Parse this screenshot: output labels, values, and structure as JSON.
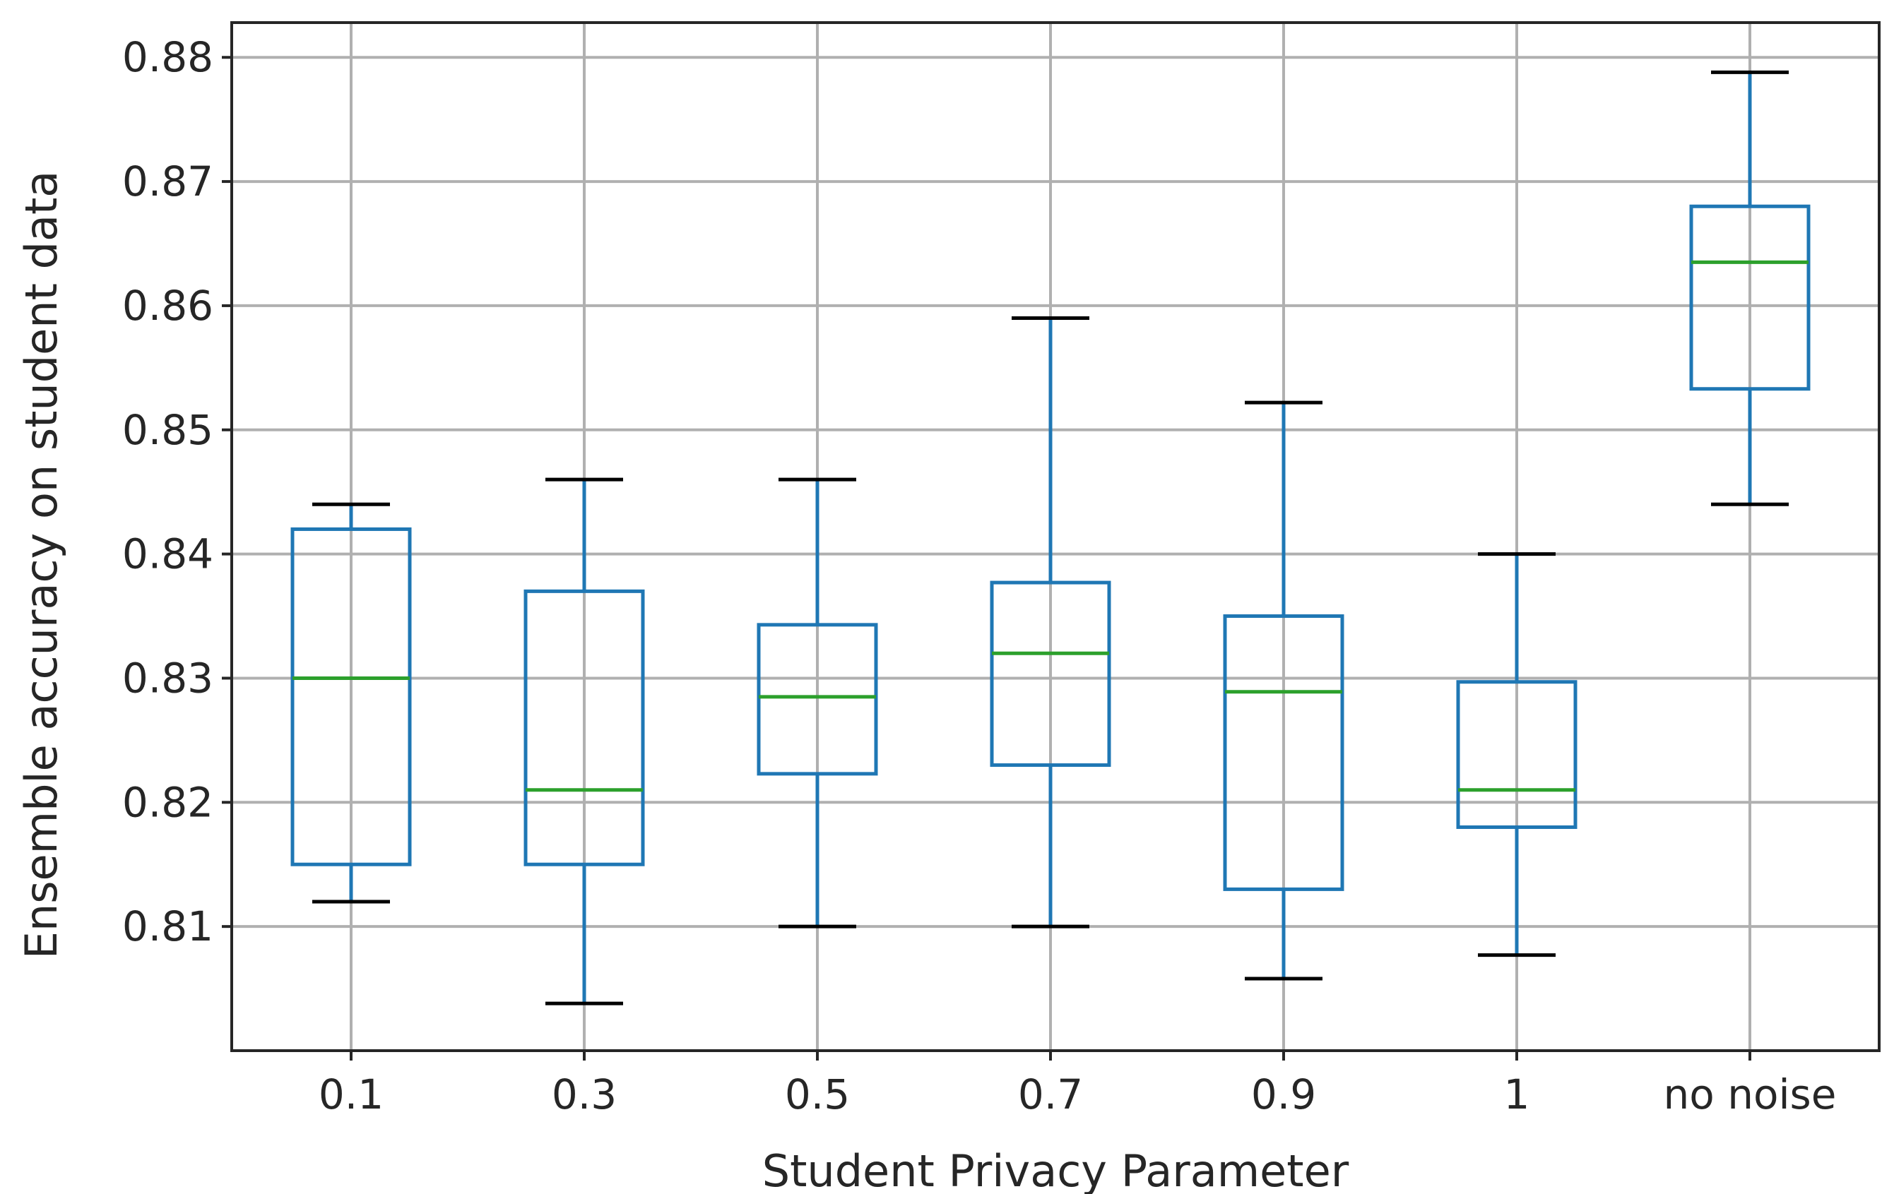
{
  "chart_data": {
    "type": "boxplot",
    "title": "",
    "xlabel": "Student Privacy Parameter",
    "ylabel": "Ensemble accuracy on student data",
    "categories": [
      "0.1",
      "0.3",
      "0.5",
      "0.7",
      "0.9",
      "1",
      "no noise"
    ],
    "ylim": [
      0.8,
      0.8828
    ],
    "yticks": [
      0.81,
      0.82,
      0.83,
      0.84,
      0.85,
      0.86,
      0.87,
      0.88
    ],
    "ytick_labels": [
      "0.81",
      "0.82",
      "0.83",
      "0.84",
      "0.85",
      "0.86",
      "0.87",
      "0.88"
    ],
    "grid": true,
    "boxes": [
      {
        "category": "0.1",
        "whisker_low": 0.812,
        "q1": 0.815,
        "median": 0.83,
        "q3": 0.842,
        "whisker_high": 0.844
      },
      {
        "category": "0.3",
        "whisker_low": 0.8038,
        "q1": 0.815,
        "median": 0.821,
        "q3": 0.837,
        "whisker_high": 0.846
      },
      {
        "category": "0.5",
        "whisker_low": 0.81,
        "q1": 0.8223,
        "median": 0.8285,
        "q3": 0.8343,
        "whisker_high": 0.846
      },
      {
        "category": "0.7",
        "whisker_low": 0.81,
        "q1": 0.823,
        "median": 0.832,
        "q3": 0.8377,
        "whisker_high": 0.859
      },
      {
        "category": "0.9",
        "whisker_low": 0.8058,
        "q1": 0.813,
        "median": 0.8289,
        "q3": 0.835,
        "whisker_high": 0.8522
      },
      {
        "category": "1",
        "whisker_low": 0.8077,
        "q1": 0.818,
        "median": 0.821,
        "q3": 0.8297,
        "whisker_high": 0.84
      },
      {
        "category": "no noise",
        "whisker_low": 0.844,
        "q1": 0.8533,
        "median": 0.8635,
        "q3": 0.868,
        "whisker_high": 0.8788
      }
    ],
    "colors": {
      "box": "#1f77b4",
      "median": "#2ca02c",
      "cap": "#000000",
      "grid": "#b0b0b0",
      "frame": "#262626"
    }
  }
}
